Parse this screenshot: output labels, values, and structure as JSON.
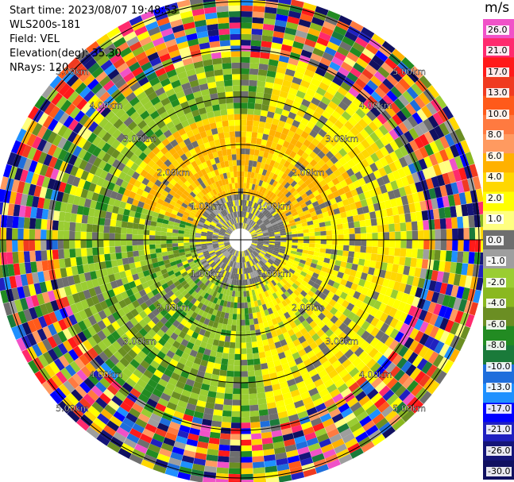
{
  "info": {
    "start_time": "Start time: 2023/08/07 19:48:53",
    "instrument": "WLS200s-181",
    "field": "Field: VEL",
    "elevation": "Elevation(deg): 35.30",
    "nrays": "NRays: 120"
  },
  "colorbar": {
    "unit": "m/s",
    "ticks": [
      "26.0",
      "21.0",
      "17.0",
      "13.0",
      "10.0",
      "8.0",
      "6.0",
      "4.0",
      "2.0",
      "1.0",
      "0.0",
      "-1.0",
      "-2.0",
      "-4.0",
      "-6.0",
      "-8.0",
      "-10.0",
      "-13.0",
      "-17.0",
      "-21.0",
      "-26.0",
      "-30.0"
    ],
    "colors": [
      "#f052c8",
      "#ff2a6e",
      "#ff1a1a",
      "#f03a20",
      "#ff5a1a",
      "#ff7a40",
      "#ff9a60",
      "#ffb100",
      "#ffd700",
      "#ffff00",
      "#ffff80",
      "#6e6e6e",
      "#9e9e9e",
      "#9acd32",
      "#8ab820",
      "#6b8e23",
      "#228b22",
      "#1a7a3a",
      "#1e6edc",
      "#1e90ff",
      "#0000ff",
      "#2020c0",
      "#141478",
      "#101060"
    ]
  },
  "chart_data": {
    "type": "ppi",
    "field": "VEL",
    "units": "m/s",
    "n_rays": 120,
    "elevation_deg": 35.3,
    "value_range": [
      -30,
      26
    ],
    "range_ring_labels_km": [
      "1.00km",
      "2.00km",
      "3.00km",
      "4.00km",
      "5.00km"
    ],
    "range_rings_km": [
      1,
      2,
      3,
      4,
      5
    ],
    "max_range_km": 5.2
  }
}
